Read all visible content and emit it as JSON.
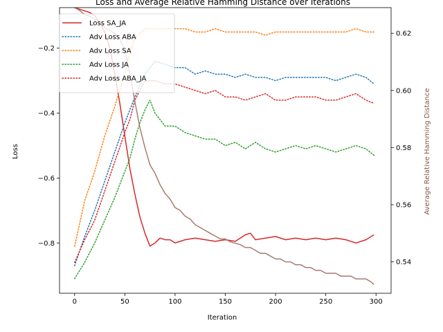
{
  "chart_data": {
    "type": "line",
    "title": "Loss and Average Relative Hamming Distance over Iterations",
    "xlabel": "Iteration",
    "ylabel_left": "Loss",
    "ylabel_right": "Average Relative Hamming Distance",
    "xlim": [
      -15,
      315
    ],
    "ylim_left": [
      -0.955,
      -0.075
    ],
    "ylim_right": [
      0.529,
      0.629
    ],
    "xticks": [
      0,
      50,
      100,
      150,
      200,
      250,
      300
    ],
    "yticks_left": [
      -0.8,
      -0.6,
      -0.4,
      -0.2
    ],
    "yticks_right": [
      0.54,
      0.56,
      0.58,
      0.6,
      0.62
    ],
    "legend_position": "upper-left",
    "grid": false,
    "series": [
      {
        "name": "Loss SA_JA",
        "axis": "left",
        "style": "solid",
        "color": "#d62728",
        "points": [
          [
            0,
            -0.075
          ],
          [
            5,
            -0.08
          ],
          [
            10,
            -0.085
          ],
          [
            15,
            -0.09
          ],
          [
            20,
            -0.1
          ],
          [
            25,
            -0.12
          ],
          [
            30,
            -0.15
          ],
          [
            35,
            -0.2
          ],
          [
            40,
            -0.28
          ],
          [
            45,
            -0.37
          ],
          [
            50,
            -0.47
          ],
          [
            55,
            -0.57
          ],
          [
            60,
            -0.65
          ],
          [
            65,
            -0.72
          ],
          [
            70,
            -0.77
          ],
          [
            75,
            -0.81
          ],
          [
            80,
            -0.8
          ],
          [
            85,
            -0.785
          ],
          [
            90,
            -0.79
          ],
          [
            95,
            -0.79
          ],
          [
            100,
            -0.8
          ],
          [
            110,
            -0.79
          ],
          [
            120,
            -0.785
          ],
          [
            130,
            -0.79
          ],
          [
            140,
            -0.795
          ],
          [
            150,
            -0.79
          ],
          [
            160,
            -0.795
          ],
          [
            170,
            -0.775
          ],
          [
            175,
            -0.77
          ],
          [
            180,
            -0.79
          ],
          [
            190,
            -0.785
          ],
          [
            200,
            -0.78
          ],
          [
            210,
            -0.79
          ],
          [
            220,
            -0.785
          ],
          [
            230,
            -0.79
          ],
          [
            240,
            -0.785
          ],
          [
            250,
            -0.79
          ],
          [
            260,
            -0.785
          ],
          [
            270,
            -0.79
          ],
          [
            280,
            -0.8
          ],
          [
            290,
            -0.79
          ],
          [
            298,
            -0.775
          ]
        ]
      },
      {
        "name": "Adv Loss ABA",
        "axis": "left",
        "style": "dotted",
        "color": "#1f77b4",
        "points": [
          [
            0,
            -0.87
          ],
          [
            10,
            -0.78
          ],
          [
            20,
            -0.7
          ],
          [
            30,
            -0.61
          ],
          [
            40,
            -0.52
          ],
          [
            50,
            -0.43
          ],
          [
            60,
            -0.35
          ],
          [
            70,
            -0.28
          ],
          [
            80,
            -0.24
          ],
          [
            90,
            -0.25
          ],
          [
            100,
            -0.26
          ],
          [
            110,
            -0.26
          ],
          [
            120,
            -0.28
          ],
          [
            130,
            -0.27
          ],
          [
            140,
            -0.28
          ],
          [
            150,
            -0.28
          ],
          [
            160,
            -0.29
          ],
          [
            170,
            -0.28
          ],
          [
            180,
            -0.29
          ],
          [
            190,
            -0.29
          ],
          [
            200,
            -0.3
          ],
          [
            210,
            -0.29
          ],
          [
            220,
            -0.29
          ],
          [
            230,
            -0.29
          ],
          [
            240,
            -0.29
          ],
          [
            250,
            -0.29
          ],
          [
            260,
            -0.3
          ],
          [
            270,
            -0.29
          ],
          [
            280,
            -0.28
          ],
          [
            290,
            -0.29
          ],
          [
            298,
            -0.31
          ]
        ]
      },
      {
        "name": "Adv Loss SA",
        "axis": "left",
        "style": "dotted",
        "color": "#ff7f0e",
        "points": [
          [
            0,
            -0.81
          ],
          [
            10,
            -0.67
          ],
          [
            20,
            -0.58
          ],
          [
            30,
            -0.47
          ],
          [
            40,
            -0.38
          ],
          [
            50,
            -0.28
          ],
          [
            55,
            -0.21
          ],
          [
            60,
            -0.17
          ],
          [
            70,
            -0.14
          ],
          [
            80,
            -0.14
          ],
          [
            90,
            -0.14
          ],
          [
            100,
            -0.14
          ],
          [
            110,
            -0.14
          ],
          [
            120,
            -0.15
          ],
          [
            130,
            -0.15
          ],
          [
            140,
            -0.14
          ],
          [
            150,
            -0.15
          ],
          [
            160,
            -0.15
          ],
          [
            170,
            -0.15
          ],
          [
            180,
            -0.15
          ],
          [
            190,
            -0.16
          ],
          [
            200,
            -0.15
          ],
          [
            210,
            -0.15
          ],
          [
            220,
            -0.15
          ],
          [
            230,
            -0.15
          ],
          [
            240,
            -0.15
          ],
          [
            250,
            -0.15
          ],
          [
            260,
            -0.15
          ],
          [
            270,
            -0.15
          ],
          [
            280,
            -0.14
          ],
          [
            290,
            -0.15
          ],
          [
            298,
            -0.15
          ]
        ]
      },
      {
        "name": "Adv Loss JA",
        "axis": "left",
        "style": "dotted",
        "color": "#2ca02c",
        "points": [
          [
            0,
            -0.91
          ],
          [
            10,
            -0.86
          ],
          [
            20,
            -0.8
          ],
          [
            30,
            -0.73
          ],
          [
            40,
            -0.66
          ],
          [
            50,
            -0.58
          ],
          [
            55,
            -0.54
          ],
          [
            60,
            -0.48
          ],
          [
            65,
            -0.43
          ],
          [
            70,
            -0.39
          ],
          [
            75,
            -0.36
          ],
          [
            80,
            -0.4
          ],
          [
            90,
            -0.44
          ],
          [
            100,
            -0.44
          ],
          [
            110,
            -0.46
          ],
          [
            120,
            -0.47
          ],
          [
            130,
            -0.48
          ],
          [
            140,
            -0.48
          ],
          [
            150,
            -0.5
          ],
          [
            160,
            -0.49
          ],
          [
            170,
            -0.51
          ],
          [
            180,
            -0.49
          ],
          [
            190,
            -0.51
          ],
          [
            200,
            -0.52
          ],
          [
            210,
            -0.51
          ],
          [
            220,
            -0.5
          ],
          [
            230,
            -0.51
          ],
          [
            240,
            -0.5
          ],
          [
            250,
            -0.51
          ],
          [
            260,
            -0.52
          ],
          [
            270,
            -0.51
          ],
          [
            280,
            -0.5
          ],
          [
            290,
            -0.51
          ],
          [
            298,
            -0.53
          ]
        ]
      },
      {
        "name": "Adv Loss ABA_JA",
        "axis": "left",
        "style": "dotted",
        "color": "#d62728",
        "points": [
          [
            0,
            -0.86
          ],
          [
            10,
            -0.79
          ],
          [
            20,
            -0.73
          ],
          [
            30,
            -0.64
          ],
          [
            40,
            -0.55
          ],
          [
            50,
            -0.46
          ],
          [
            55,
            -0.42
          ],
          [
            60,
            -0.36
          ],
          [
            70,
            -0.3
          ],
          [
            80,
            -0.3
          ],
          [
            90,
            -0.31
          ],
          [
            100,
            -0.31
          ],
          [
            110,
            -0.32
          ],
          [
            120,
            -0.33
          ],
          [
            130,
            -0.34
          ],
          [
            140,
            -0.33
          ],
          [
            150,
            -0.35
          ],
          [
            160,
            -0.35
          ],
          [
            170,
            -0.36
          ],
          [
            180,
            -0.35
          ],
          [
            190,
            -0.34
          ],
          [
            200,
            -0.36
          ],
          [
            210,
            -0.36
          ],
          [
            220,
            -0.35
          ],
          [
            230,
            -0.35
          ],
          [
            240,
            -0.35
          ],
          [
            250,
            -0.36
          ],
          [
            260,
            -0.36
          ],
          [
            270,
            -0.35
          ],
          [
            280,
            -0.34
          ],
          [
            290,
            -0.36
          ],
          [
            298,
            -0.37
          ]
        ]
      },
      {
        "name": "",
        "axis": "right",
        "style": "solid",
        "color": "#a87a6e",
        "points": [
          [
            0,
            0.629
          ],
          [
            5,
            0.628
          ],
          [
            10,
            0.6265
          ],
          [
            15,
            0.626
          ],
          [
            20,
            0.625
          ],
          [
            25,
            0.624
          ],
          [
            30,
            0.622
          ],
          [
            35,
            0.621
          ],
          [
            40,
            0.62
          ],
          [
            45,
            0.618
          ],
          [
            50,
            0.614
          ],
          [
            55,
            0.606
          ],
          [
            60,
            0.596
          ],
          [
            65,
            0.587
          ],
          [
            70,
            0.58
          ],
          [
            75,
            0.574
          ],
          [
            80,
            0.571
          ],
          [
            85,
            0.567
          ],
          [
            90,
            0.564
          ],
          [
            95,
            0.562
          ],
          [
            100,
            0.559
          ],
          [
            105,
            0.558
          ],
          [
            110,
            0.556
          ],
          [
            115,
            0.555
          ],
          [
            120,
            0.553
          ],
          [
            125,
            0.552
          ],
          [
            130,
            0.551
          ],
          [
            135,
            0.55
          ],
          [
            140,
            0.549
          ],
          [
            145,
            0.548
          ],
          [
            150,
            0.548
          ],
          [
            155,
            0.547
          ],
          [
            160,
            0.5465
          ],
          [
            165,
            0.546
          ],
          [
            170,
            0.545
          ],
          [
            175,
            0.545
          ],
          [
            180,
            0.544
          ],
          [
            185,
            0.543
          ],
          [
            190,
            0.543
          ],
          [
            195,
            0.542
          ],
          [
            200,
            0.541
          ],
          [
            205,
            0.541
          ],
          [
            210,
            0.54
          ],
          [
            215,
            0.54
          ],
          [
            220,
            0.539
          ],
          [
            225,
            0.539
          ],
          [
            230,
            0.538
          ],
          [
            235,
            0.538
          ],
          [
            240,
            0.537
          ],
          [
            245,
            0.537
          ],
          [
            250,
            0.536
          ],
          [
            255,
            0.536
          ],
          [
            260,
            0.536
          ],
          [
            265,
            0.535
          ],
          [
            270,
            0.535
          ],
          [
            275,
            0.535
          ],
          [
            280,
            0.534
          ],
          [
            285,
            0.534
          ],
          [
            290,
            0.534
          ],
          [
            295,
            0.533
          ],
          [
            298,
            0.532
          ]
        ]
      }
    ]
  }
}
